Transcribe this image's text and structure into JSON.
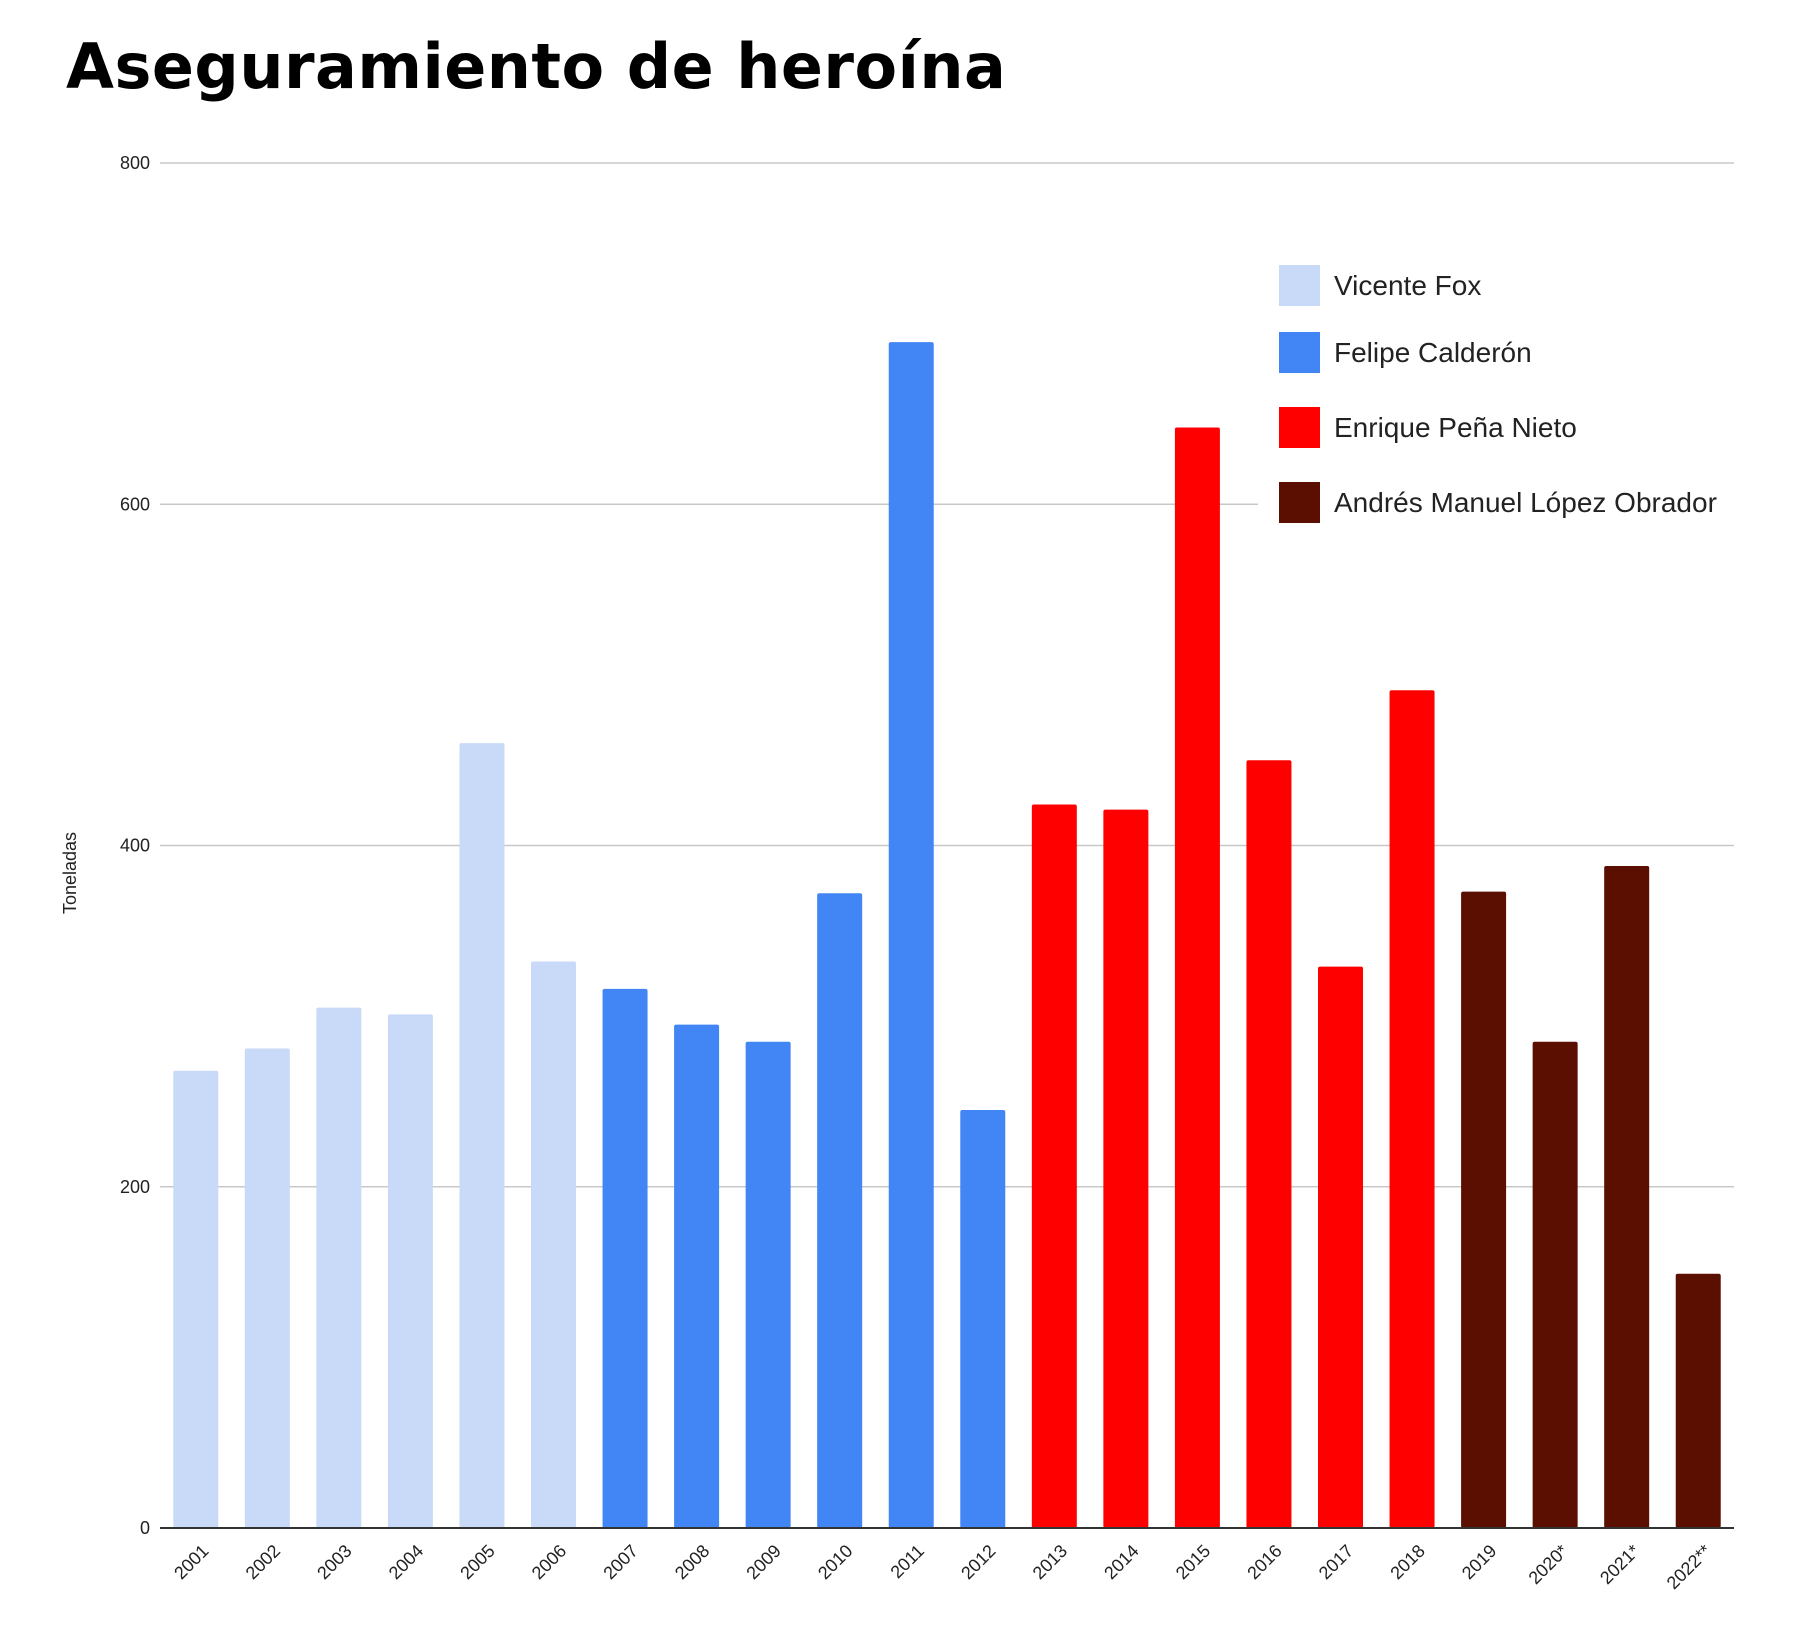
{
  "chart_data": {
    "type": "bar",
    "title": "Aseguramiento de heroína",
    "xlabel": "",
    "ylabel": "Toneladas",
    "ylim": [
      0,
      800
    ],
    "yticks": [
      "0",
      "200",
      "400",
      "600",
      "800"
    ],
    "grid": true,
    "legend_position": "top-right",
    "categories": [
      "2001",
      "2002",
      "2003",
      "2004",
      "2005",
      "2006",
      "2007",
      "2008",
      "2009",
      "2010",
      "2011",
      "2012",
      "2013",
      "2014",
      "2015",
      "2016",
      "2017",
      "2018",
      "2019",
      "2020*",
      "2021*",
      "2022**"
    ],
    "values": [
      268,
      281,
      305,
      301,
      460,
      332,
      316,
      295,
      285,
      372,
      695,
      245,
      424,
      421,
      645,
      450,
      329,
      491,
      373,
      285,
      388,
      149
    ],
    "series": [
      {
        "name": "Vicente Fox",
        "color": "#c9daf8",
        "categories": [
          "2001",
          "2002",
          "2003",
          "2004",
          "2005",
          "2006"
        ]
      },
      {
        "name": "Felipe Calderón",
        "color": "#4285f4",
        "categories": [
          "2007",
          "2008",
          "2009",
          "2010",
          "2011",
          "2012"
        ]
      },
      {
        "name": "Enrique Peña Nieto",
        "color": "#ff0000",
        "categories": [
          "2013",
          "2014",
          "2015",
          "2016",
          "2017",
          "2018"
        ]
      },
      {
        "name": "Andrés Manuel López Obrador",
        "color": "#5b0f00",
        "categories": [
          "2019",
          "2020*",
          "2021*",
          "2022**"
        ]
      }
    ]
  }
}
